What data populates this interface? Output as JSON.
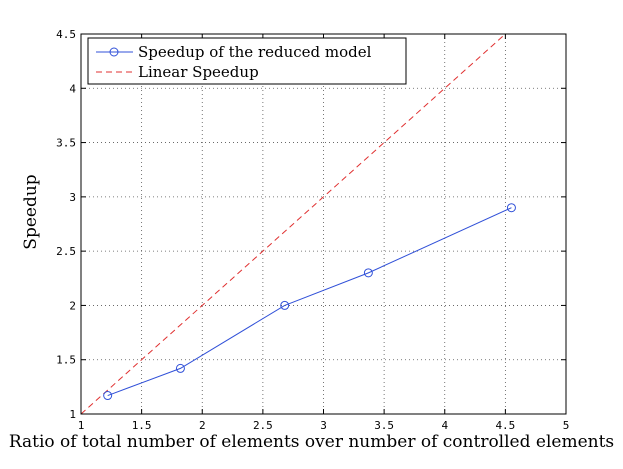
{
  "chart_data": {
    "type": "line",
    "xlabel": "Ratio of total number of elements over number of controlled elements",
    "ylabel": "Speedup",
    "xlim": [
      1,
      5
    ],
    "ylim": [
      1,
      4.5
    ],
    "xticks": [
      "1",
      "1.5",
      "2",
      "2.5",
      "3",
      "3.5",
      "4",
      "4.5",
      "5"
    ],
    "yticks": [
      "1",
      "1.5",
      "2",
      "2.5",
      "3",
      "3.5",
      "4",
      "4.5"
    ],
    "grid": true,
    "legend_position": "top-left",
    "series": [
      {
        "name": "Speedup of the reduced model",
        "style": "solid-circle-markers",
        "color": "#3050d8",
        "x": [
          1.22,
          1.82,
          2.68,
          3.37,
          4.55
        ],
        "y": [
          1.17,
          1.42,
          2.0,
          2.3,
          2.9
        ]
      },
      {
        "name": "Linear Speedup",
        "style": "dashed",
        "color": "#e03030",
        "x": [
          1,
          5
        ],
        "y": [
          1,
          5
        ]
      }
    ]
  }
}
